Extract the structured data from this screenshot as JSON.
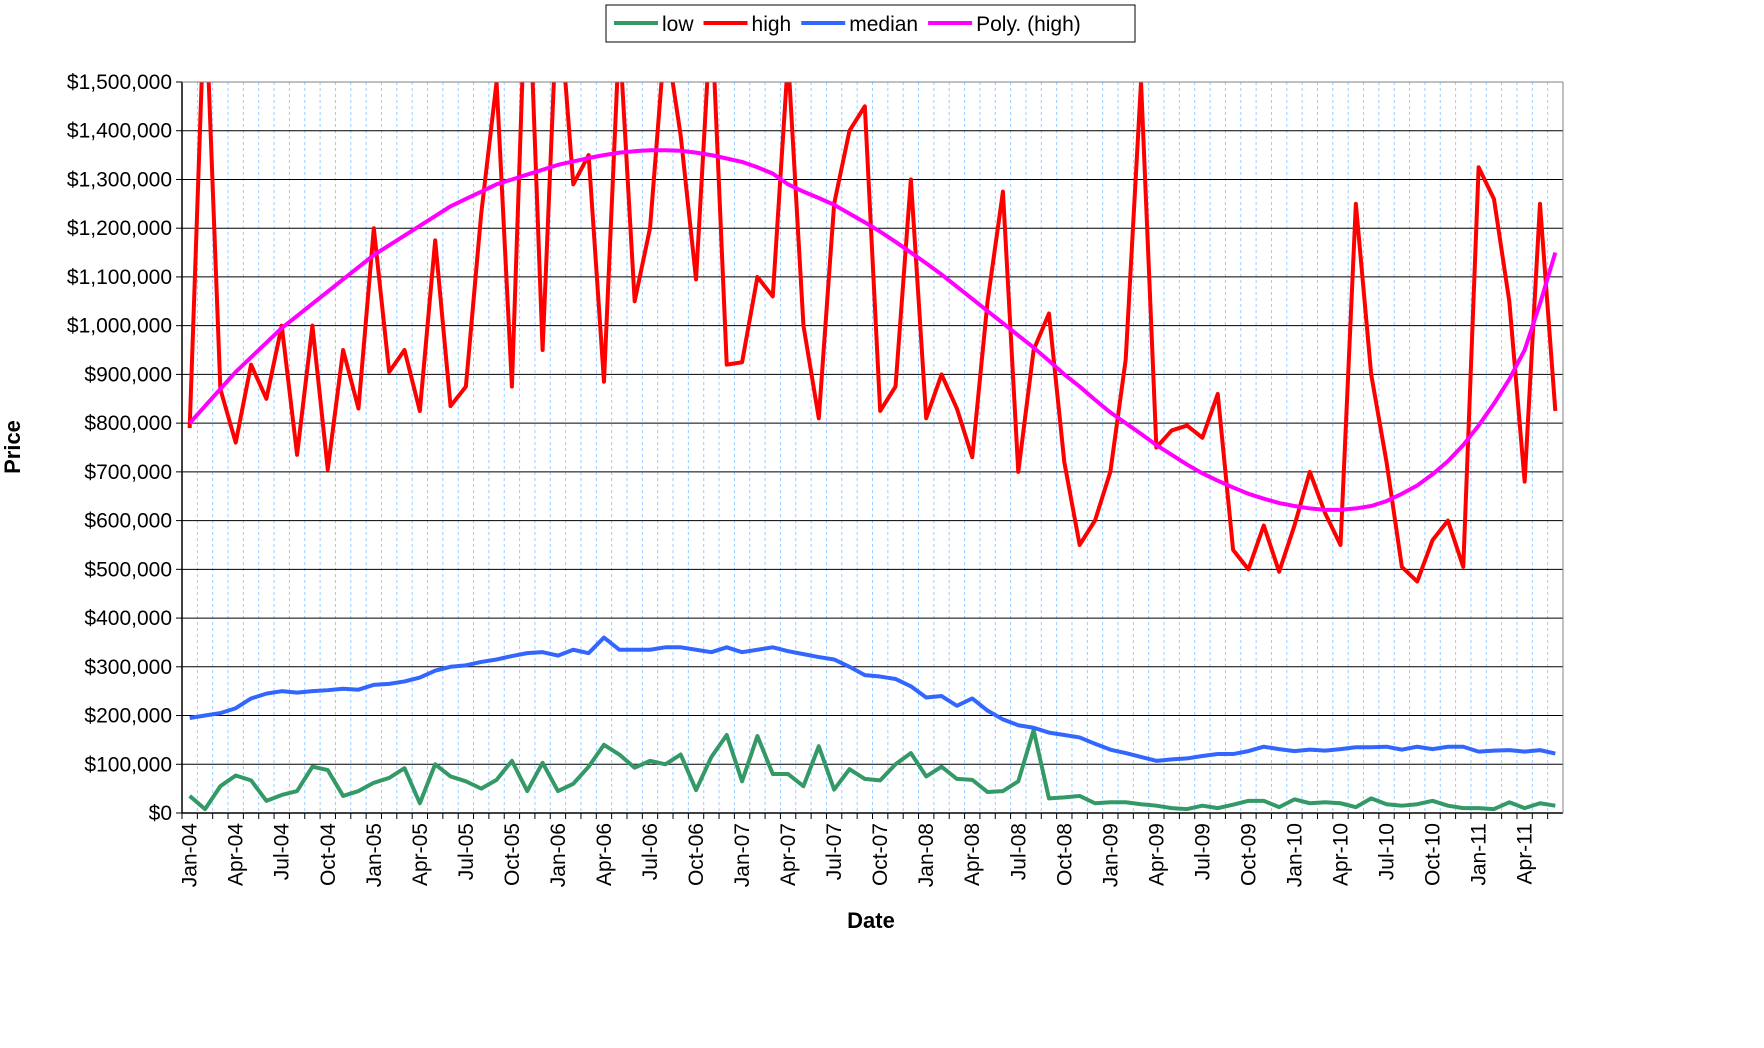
{
  "chart_data": {
    "type": "line",
    "x_label": "Date",
    "y_label": "Price",
    "categories": [
      "Jan-04",
      null,
      null,
      "Apr-04",
      null,
      null,
      "Jul-04",
      null,
      null,
      "Oct-04",
      null,
      null,
      "Jan-05",
      null,
      null,
      "Apr-05",
      null,
      null,
      "Jul-05",
      null,
      null,
      "Oct-05",
      null,
      null,
      "Jan-06",
      null,
      null,
      "Apr-06",
      null,
      null,
      "Jul-06",
      null,
      null,
      "Oct-06",
      null,
      null,
      "Jan-07",
      null,
      null,
      "Apr-07",
      null,
      null,
      "Jul-07",
      null,
      null,
      "Oct-07",
      null,
      null,
      "Jan-08",
      null,
      null,
      "Apr-08",
      null,
      null,
      "Jul-08",
      null,
      null,
      "Oct-08",
      null,
      null,
      "Jan-09",
      null,
      null,
      "Apr-09",
      null,
      null,
      "Jul-09",
      null,
      null,
      "Oct-09",
      null,
      null,
      "Jan-10",
      null,
      null,
      "Apr-10",
      null,
      null,
      "Jul-10",
      null,
      null,
      "Oct-10",
      null,
      null,
      "Jan-11",
      null,
      null,
      "Apr-11",
      null,
      null
    ],
    "series": [
      {
        "name": "low",
        "color": "#339966",
        "values": [
          35000,
          8000,
          55000,
          77000,
          67000,
          25000,
          37000,
          45000,
          95000,
          88000,
          35000,
          45000,
          62000,
          72000,
          92000,
          20000,
          100000,
          75000,
          65000,
          50000,
          68000,
          107000,
          45000,
          103000,
          45000,
          60000,
          95000,
          140000,
          120000,
          93000,
          107000,
          100000,
          120000,
          47000,
          115000,
          160000,
          65000,
          158000,
          80000,
          80000,
          55000,
          137000,
          48000,
          90000,
          70000,
          67000,
          100000,
          123000,
          75000,
          95000,
          70000,
          68000,
          43000,
          45000,
          65000,
          170000,
          30000,
          32000,
          35000,
          20000,
          22000,
          22000,
          18000,
          15000,
          10000,
          8000,
          15000,
          10000,
          17000,
          25000,
          25000,
          12000,
          28000,
          20000,
          22000,
          20000,
          12000,
          30000,
          18000,
          15000,
          18000,
          25000,
          15000,
          10000,
          10000,
          8000,
          22000,
          10000,
          20000,
          15000
        ]
      },
      {
        "name": "high",
        "color": "#ff0000",
        "values": [
          790000,
          1700000,
          870000,
          760000,
          920000,
          850000,
          1000000,
          735000,
          1000000,
          705000,
          950000,
          830000,
          1200000,
          905000,
          950000,
          825000,
          1175000,
          835000,
          875000,
          1230000,
          1500000,
          875000,
          1800000,
          950000,
          1700000,
          1290000,
          1350000,
          885000,
          1600000,
          1050000,
          1200000,
          1600000,
          1390000,
          1095000,
          1650000,
          920000,
          925000,
          1100000,
          1060000,
          1550000,
          1000000,
          810000,
          1250000,
          1400000,
          1450000,
          825000,
          875000,
          1300000,
          810000,
          900000,
          830000,
          730000,
          1050000,
          1275000,
          700000,
          950000,
          1025000,
          720000,
          550000,
          600000,
          700000,
          930000,
          1500000,
          750000,
          785000,
          795000,
          770000,
          860000,
          540000,
          500000,
          590000,
          495000,
          590000,
          700000,
          615000,
          550000,
          1250000,
          900000,
          720000,
          505000,
          475000,
          560000,
          600000,
          505000,
          1325000,
          1260000,
          1050000,
          680000,
          1250000,
          825000
        ]
      },
      {
        "name": "median",
        "color": "#3366ff",
        "values": [
          195000,
          200000,
          205000,
          215000,
          235000,
          245000,
          250000,
          247000,
          250000,
          252000,
          255000,
          253000,
          263000,
          265000,
          270000,
          278000,
          292000,
          300000,
          303000,
          310000,
          315000,
          322000,
          328000,
          330000,
          323000,
          335000,
          328000,
          360000,
          335000,
          335000,
          335000,
          340000,
          340000,
          335000,
          330000,
          340000,
          330000,
          335000,
          340000,
          332000,
          326000,
          320000,
          315000,
          300000,
          283000,
          280000,
          275000,
          260000,
          237000,
          240000,
          220000,
          235000,
          210000,
          192000,
          180000,
          175000,
          165000,
          160000,
          155000,
          142000,
          130000,
          123000,
          115000,
          107000,
          110000,
          112000,
          117000,
          121000,
          121000,
          127000,
          136000,
          131000,
          127000,
          130000,
          128000,
          131000,
          135000,
          135000,
          136000,
          130000,
          136000,
          131000,
          136000,
          136000,
          126000,
          128000,
          129000,
          126000,
          129000,
          122000
        ]
      },
      {
        "name": "Poly. (high)",
        "color": "#ff00ff",
        "values": [
          800000,
          835000,
          870000,
          905000,
          935000,
          965000,
          995000,
          1020000,
          1045000,
          1070000,
          1095000,
          1120000,
          1145000,
          1165000,
          1185000,
          1205000,
          1225000,
          1245000,
          1260000,
          1275000,
          1290000,
          1300000,
          1310000,
          1320000,
          1330000,
          1337000,
          1344000,
          1350000,
          1355000,
          1358000,
          1360000,
          1360000,
          1359000,
          1355000,
          1350000,
          1343000,
          1336000,
          1325000,
          1312000,
          1290000,
          1275000,
          1262000,
          1248000,
          1230000,
          1212000,
          1193000,
          1172000,
          1150000,
          1128000,
          1105000,
          1080000,
          1055000,
          1030000,
          1005000,
          980000,
          955000,
          928000,
          900000,
          875000,
          848000,
          822000,
          800000,
          778000,
          755000,
          735000,
          715000,
          697000,
          682000,
          668000,
          655000,
          645000,
          636000,
          630000,
          625000,
          622000,
          622000,
          625000,
          630000,
          640000,
          655000,
          672000,
          695000,
          722000,
          755000,
          795000,
          840000,
          890000,
          950000,
          1045000,
          1150000
        ]
      }
    ],
    "ylim": [
      0,
      1500000
    ],
    "yticks": [
      {
        "value": 0,
        "label": "$0"
      },
      {
        "value": 100000,
        "label": "$100,000"
      },
      {
        "value": 200000,
        "label": "$200,000"
      },
      {
        "value": 300000,
        "label": "$300,000"
      },
      {
        "value": 400000,
        "label": "$400,000"
      },
      {
        "value": 500000,
        "label": "$500,000"
      },
      {
        "value": 600000,
        "label": "$600,000"
      },
      {
        "value": 700000,
        "label": "$700,000"
      },
      {
        "value": 800000,
        "label": "$800,000"
      },
      {
        "value": 900000,
        "label": "$900,000"
      },
      {
        "value": 1000000,
        "label": "$1,000,000"
      },
      {
        "value": 1100000,
        "label": "$1,100,000"
      },
      {
        "value": 1200000,
        "label": "$1,200,000"
      },
      {
        "value": 1300000,
        "label": "$1,300,000"
      },
      {
        "value": 1400000,
        "label": "$1,400,000"
      },
      {
        "value": 1500000,
        "label": "$1,500,000"
      }
    ],
    "grid": true,
    "legend": "top"
  }
}
